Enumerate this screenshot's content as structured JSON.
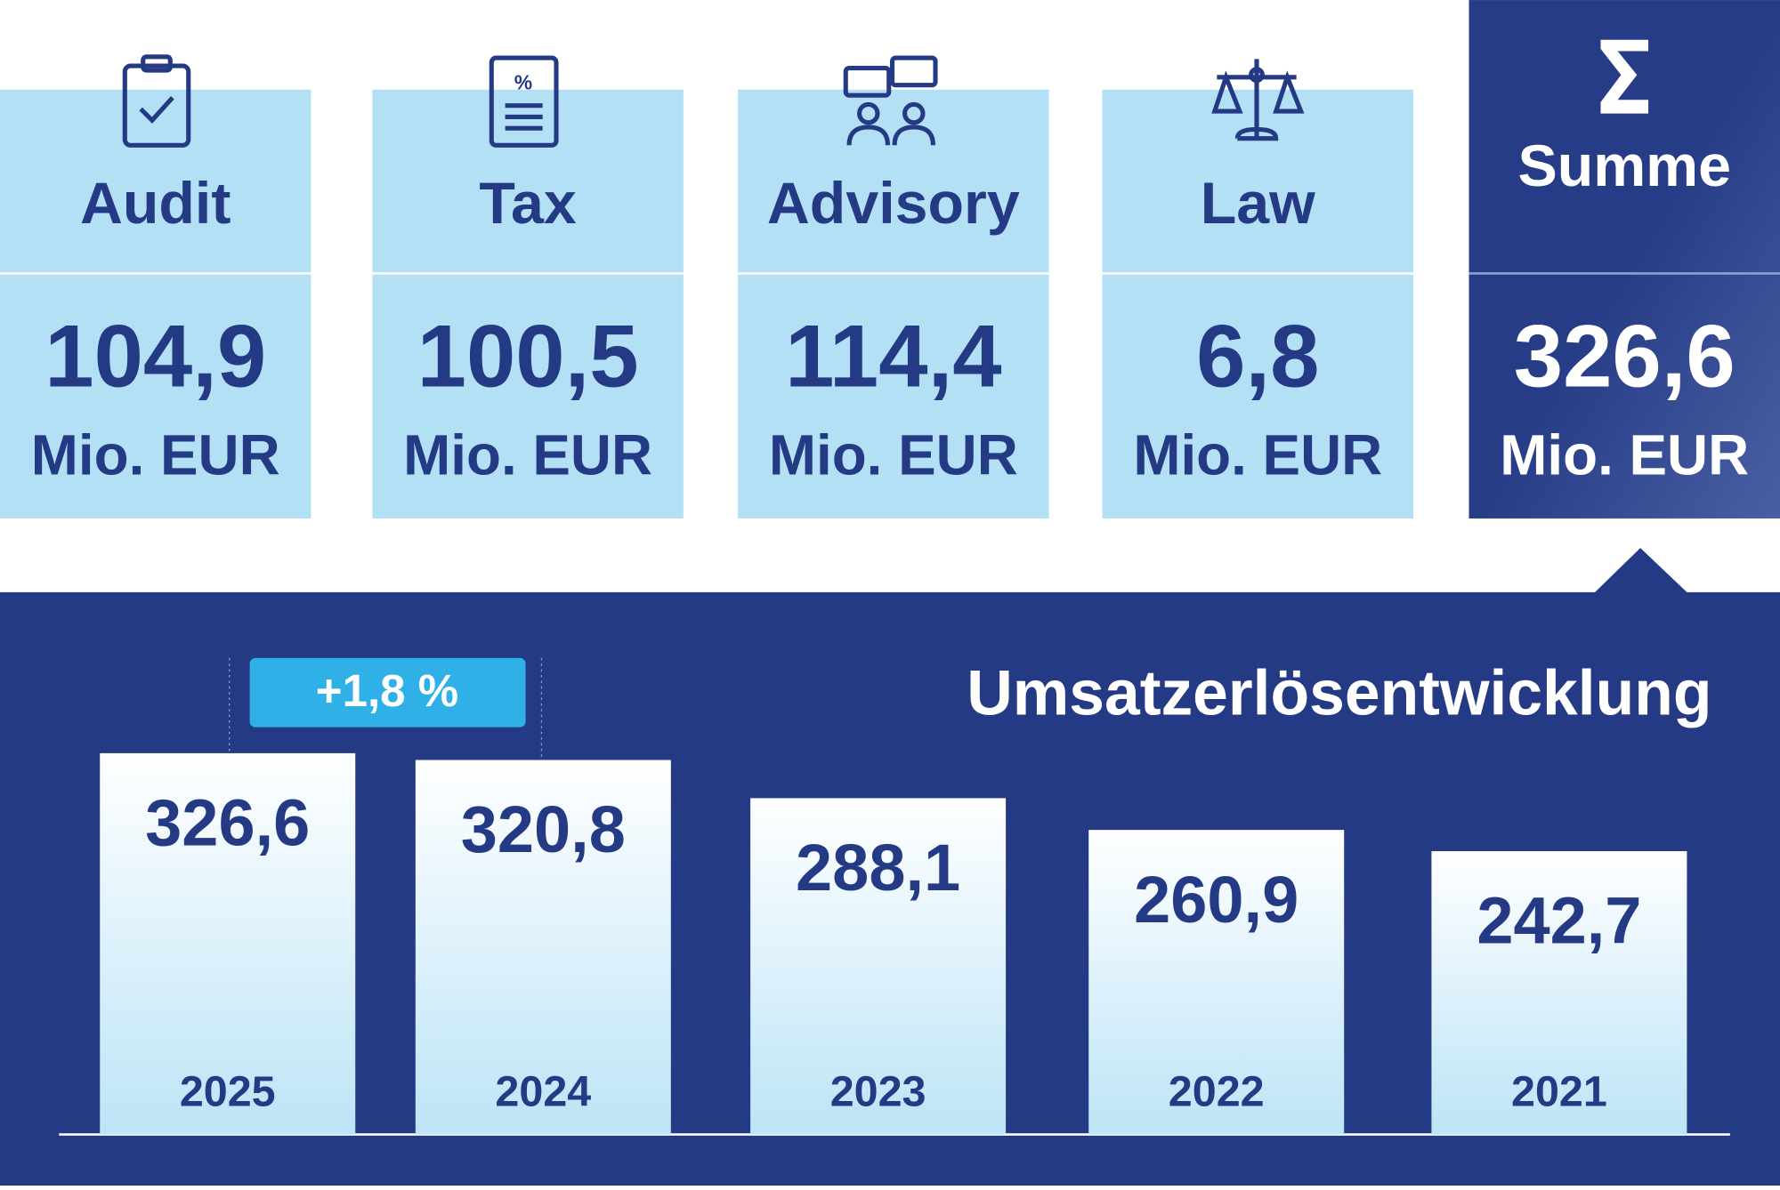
{
  "cards": [
    {
      "label": "Audit",
      "value": "104,9",
      "unit": "Mio. EUR"
    },
    {
      "label": "Tax",
      "value": "100,5",
      "unit": "Mio. EUR"
    },
    {
      "label": "Advisory",
      "value": "114,4",
      "unit": "Mio. EUR"
    },
    {
      "label": "Law",
      "value": "6,8",
      "unit": "Mio. EUR"
    }
  ],
  "summary": {
    "label": "Summe",
    "value": "326,6",
    "unit": "Mio. EUR"
  },
  "chart_data": {
    "type": "bar",
    "title": "Umsatzerlösentwicklung",
    "categories": [
      "2025",
      "2024",
      "2023",
      "2022",
      "2021"
    ],
    "values": [
      326.6,
      320.8,
      288.1,
      260.9,
      242.7
    ],
    "value_labels": [
      "326,6",
      "320,8",
      "288,1",
      "260,9",
      "242,7"
    ],
    "annotation": "+1,8 %"
  }
}
